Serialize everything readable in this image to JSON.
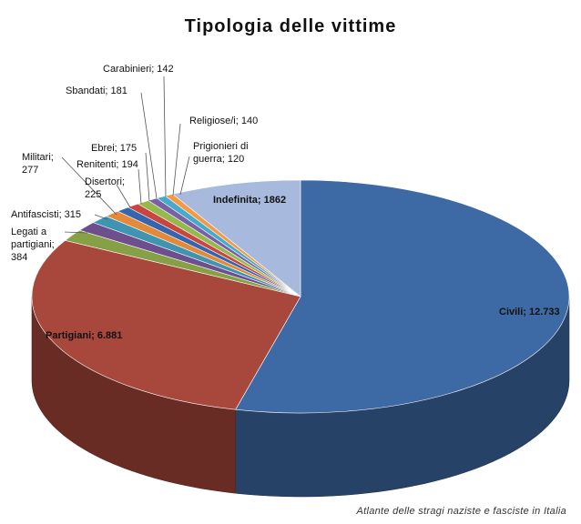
{
  "chart_data": {
    "type": "pie",
    "title": "Tipologia delle vittime",
    "source": "Atlante delle stragi naziste e fasciste in Italia",
    "slices": [
      {
        "label": "Civili",
        "value_text": "12.733",
        "value": 12733,
        "color": "#3d6aa5"
      },
      {
        "label": "Partigiani",
        "value_text": "6.881",
        "value": 6881,
        "color": "#a8473b"
      },
      {
        "label": "Legati a partigiani",
        "value_text": "384",
        "value": 384,
        "color": "#86a046"
      },
      {
        "label": "Antifascisti",
        "value_text": "315",
        "value": 315,
        "color": "#6c4f8c"
      },
      {
        "label": "Militari",
        "value_text": "277",
        "value": 277,
        "color": "#3f95b1"
      },
      {
        "label": "Disertori",
        "value_text": "225",
        "value": 225,
        "color": "#e3893a"
      },
      {
        "label": "Renitenti",
        "value_text": "194",
        "value": 194,
        "color": "#3466b0"
      },
      {
        "label": "Ebrei",
        "value_text": "175",
        "value": 175,
        "color": "#c8463f"
      },
      {
        "label": "Sbandati",
        "value_text": "181",
        "value": 181,
        "color": "#96b94e"
      },
      {
        "label": "Carabinieri",
        "value_text": "142",
        "value": 142,
        "color": "#7b5fa5"
      },
      {
        "label": "Religiose/i",
        "value_text": "140",
        "value": 140,
        "color": "#45aacb"
      },
      {
        "label": "Prigionieri di guerra",
        "value_text": "120",
        "value": 120,
        "color": "#f29a46"
      },
      {
        "label": "Indefinita",
        "value_text": "1862",
        "value": 1862,
        "color": "#a7b9dc"
      }
    ]
  }
}
